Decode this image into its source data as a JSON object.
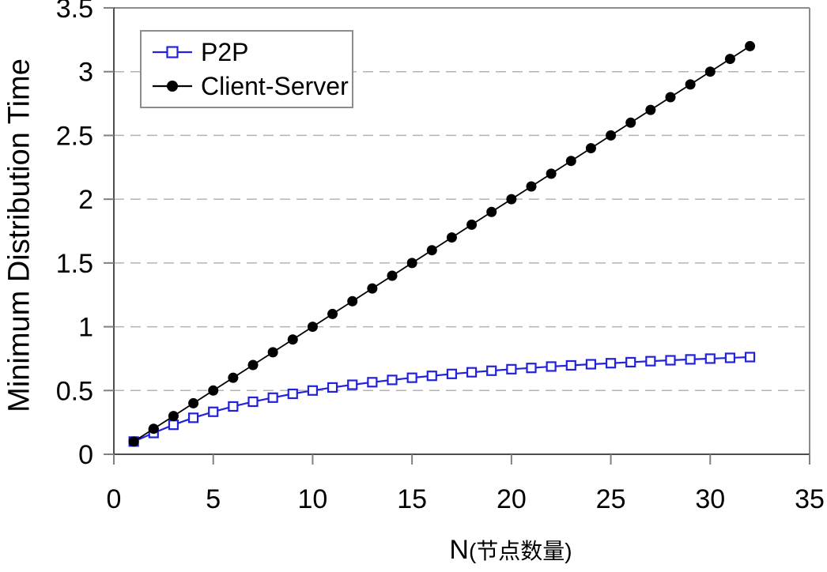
{
  "chart_data": {
    "type": "line",
    "title": "",
    "xlabel_main": "N",
    "xlabel_paren": "(节点数量)",
    "ylabel": "Minimum Distribution Time",
    "xlim": [
      0,
      35
    ],
    "ylim": [
      0,
      3.5
    ],
    "xticks": [
      0,
      5,
      10,
      15,
      20,
      25,
      30,
      35
    ],
    "yticks": [
      0,
      0.5,
      1,
      1.5,
      2,
      2.5,
      3,
      3.5
    ],
    "ytick_labels": [
      "0",
      "0.5",
      "1",
      "1.5",
      "2",
      "2.5",
      "3",
      "3.5"
    ],
    "grid": "horizontal-dashed",
    "legend_position": "top-left",
    "x": [
      1,
      2,
      3,
      4,
      5,
      6,
      7,
      8,
      9,
      10,
      11,
      12,
      13,
      14,
      15,
      16,
      17,
      18,
      19,
      20,
      21,
      22,
      23,
      24,
      25,
      26,
      27,
      28,
      29,
      30,
      31,
      32
    ],
    "series": [
      {
        "name": "P2P",
        "color": "#2222dd",
        "marker": "square-open",
        "values": [
          0.1,
          0.167,
          0.231,
          0.286,
          0.333,
          0.375,
          0.412,
          0.444,
          0.474,
          0.5,
          0.524,
          0.545,
          0.565,
          0.583,
          0.6,
          0.615,
          0.63,
          0.643,
          0.655,
          0.667,
          0.677,
          0.688,
          0.697,
          0.706,
          0.714,
          0.722,
          0.73,
          0.737,
          0.744,
          0.75,
          0.756,
          0.762
        ]
      },
      {
        "name": "Client-Server",
        "color": "#000000",
        "marker": "circle-filled",
        "values": [
          0.1,
          0.2,
          0.3,
          0.4,
          0.5,
          0.6,
          0.7,
          0.8,
          0.9,
          1.0,
          1.1,
          1.2,
          1.3,
          1.4,
          1.5,
          1.6,
          1.7,
          1.8,
          1.9,
          2.0,
          2.1,
          2.2,
          2.3,
          2.4,
          2.5,
          2.6,
          2.7,
          2.8,
          2.9,
          3.0,
          3.1,
          3.2
        ]
      }
    ]
  },
  "colors": {
    "background": "#ffffff",
    "gridline": "#b3b3b3",
    "axis": "#4d4d4d",
    "tick": "#808080",
    "plot_border": "#8c8c8c",
    "legend_border": "#8c8c8c",
    "text": "#000000"
  }
}
